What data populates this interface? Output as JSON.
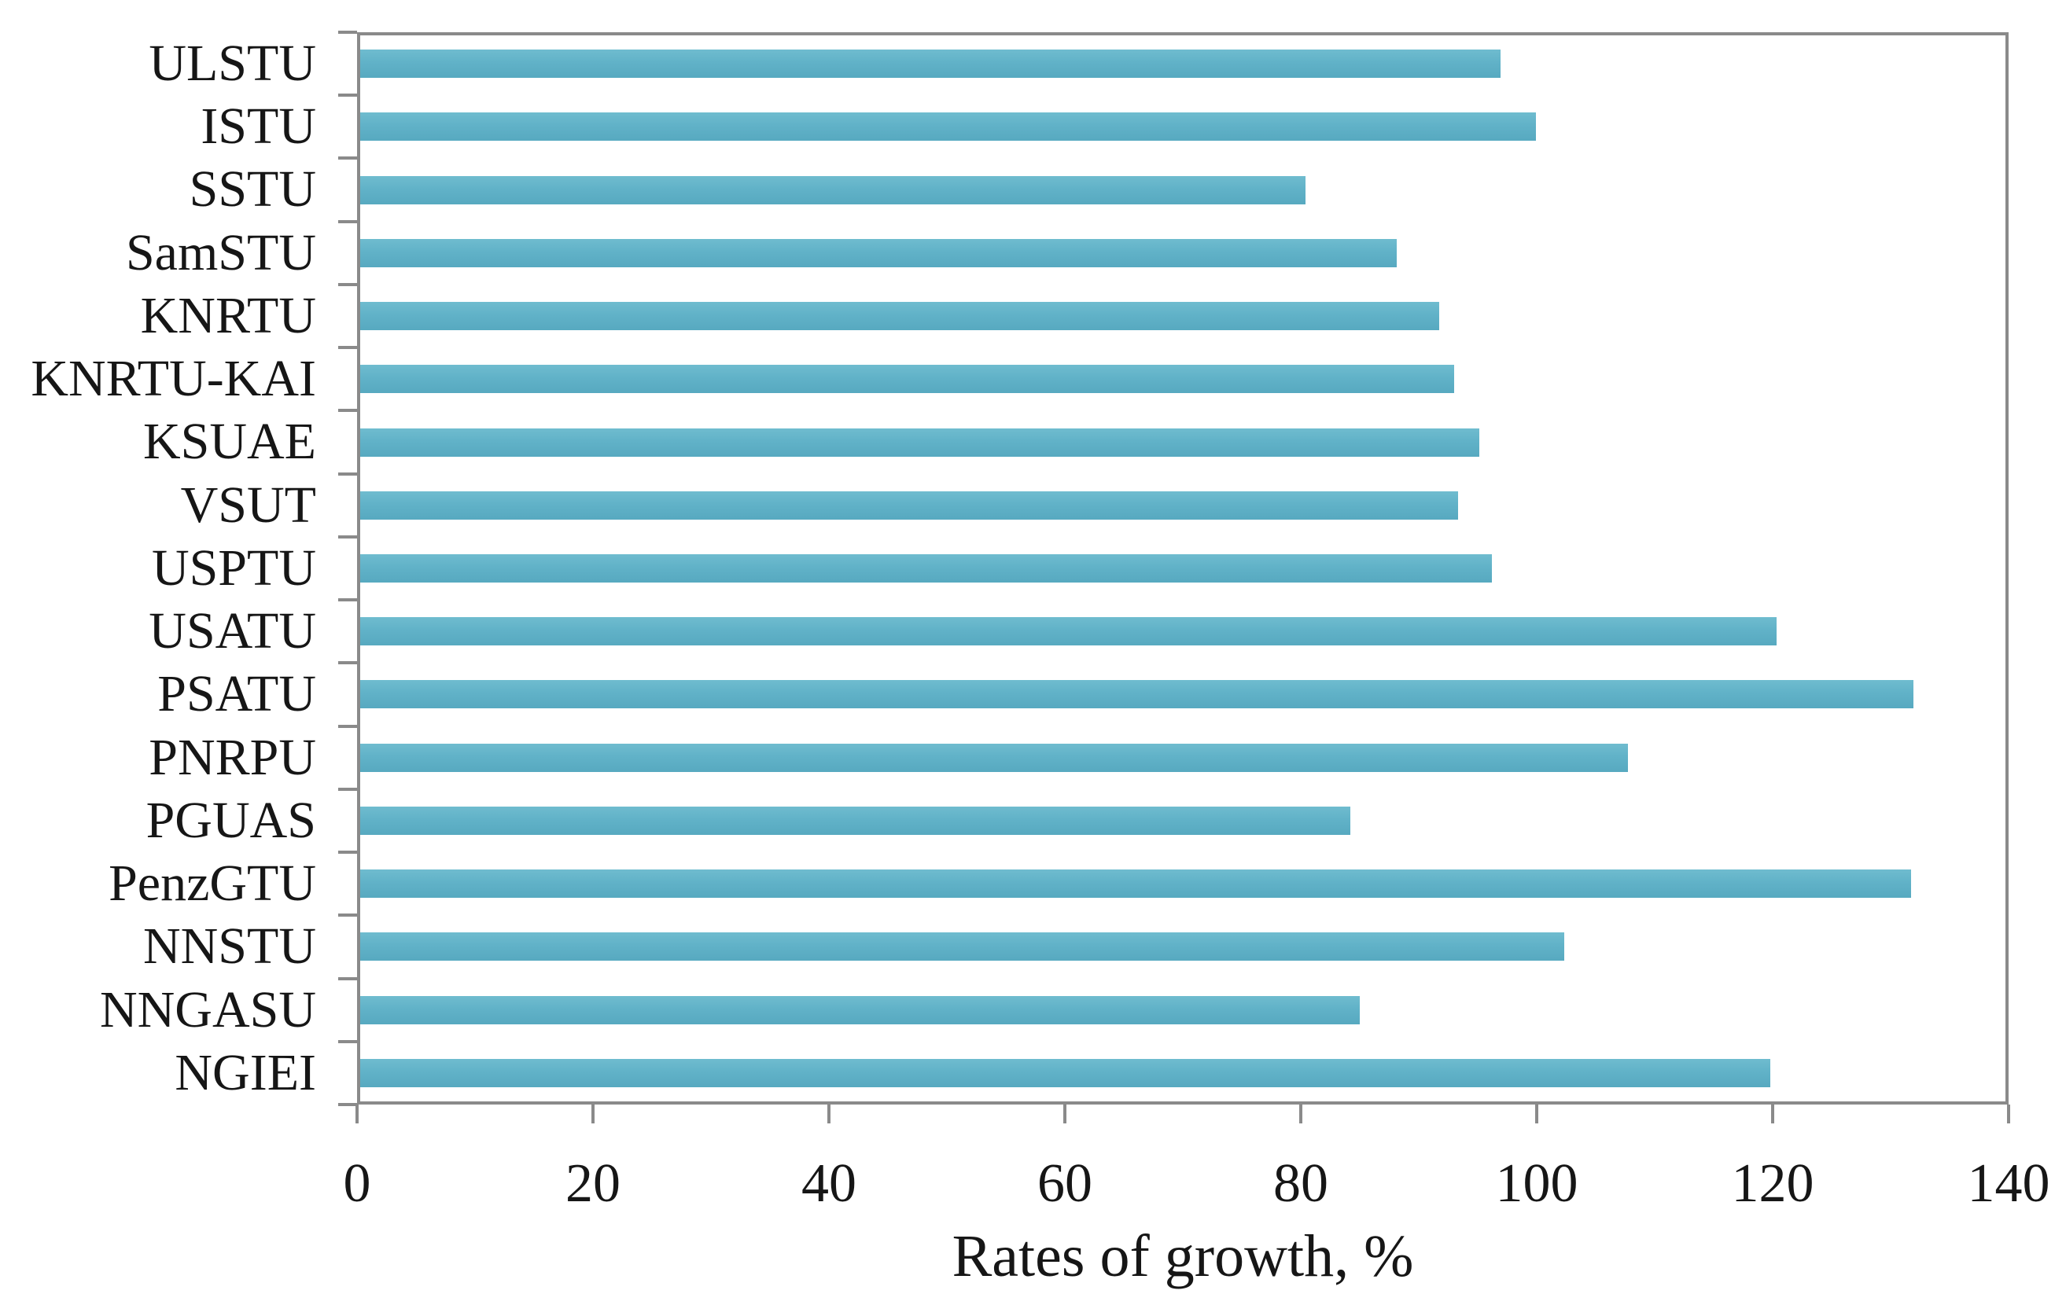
{
  "chart_data": {
    "type": "bar",
    "orientation": "horizontal",
    "title": "",
    "xlabel": "Rates of growth, %",
    "ylabel": "",
    "categories": [
      "ULSTU",
      "ISTU",
      "SSTU",
      "SamSTU",
      "KNRTU",
      "KNRTU-KAI",
      "KSUAE",
      "VSUT",
      "USPTU",
      "USATU",
      "PSATU",
      "PNRPU",
      "PGUAS",
      "PenzGTU",
      "NNSTU",
      "NNGASU",
      "NGIEI"
    ],
    "values": [
      96.9,
      99.9,
      80.4,
      88.1,
      91.7,
      93.0,
      95.1,
      93.3,
      96.2,
      120.3,
      131.9,
      107.7,
      84.2,
      131.7,
      102.3,
      85.0,
      119.8
    ],
    "xlim": [
      0,
      140
    ],
    "xticks": [
      0,
      20,
      40,
      60,
      80,
      100,
      120,
      140
    ],
    "grid": false,
    "legend": null,
    "bar_color": "#61b2c8",
    "axis_color": "#8a8a8a",
    "text_color": "#161616"
  }
}
